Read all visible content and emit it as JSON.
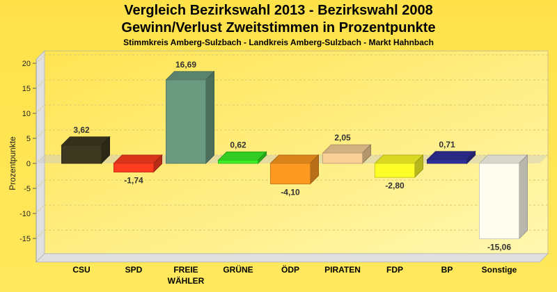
{
  "chart_data": {
    "type": "bar",
    "title": "Vergleich Bezirkswahl 2013 - Bezirkswahl 2008",
    "subtitle": "Gewinn/Verlust Zweitstimmen in Prozentpunkte",
    "subtitle2": "Stimmkreis Amberg-Sulzbach - Landkreis Amberg-Sulzbach - Markt Hahnbach",
    "xlabel": "",
    "ylabel": "Prozentpunkte",
    "ylim": [
      -19.7,
      20.8
    ],
    "yticks": [
      20,
      15,
      10,
      5,
      0,
      -5,
      -10,
      -15
    ],
    "grid": true,
    "categories": [
      "CSU",
      "SPD",
      "FREIE\nWÄHLER",
      "GRÜNE",
      "ÖDP",
      "PIRATEN",
      "FDP",
      "BP",
      "Sonstige"
    ],
    "values": [
      3.62,
      -1.74,
      16.69,
      0.62,
      -4.1,
      2.05,
      -2.8,
      0.71,
      -15.06
    ],
    "value_labels": [
      "3,62",
      "-1,74",
      "16,69",
      "0,62",
      "-4,10",
      "2,05",
      "-2,80",
      "0,71",
      "-15,06"
    ],
    "colors": [
      "#3d3820",
      "#ff3c1e",
      "#6a9a80",
      "#3cf028",
      "#ff9a20",
      "#f8d098",
      "#ffff28",
      "#30309a",
      "#fffdf0"
    ]
  }
}
